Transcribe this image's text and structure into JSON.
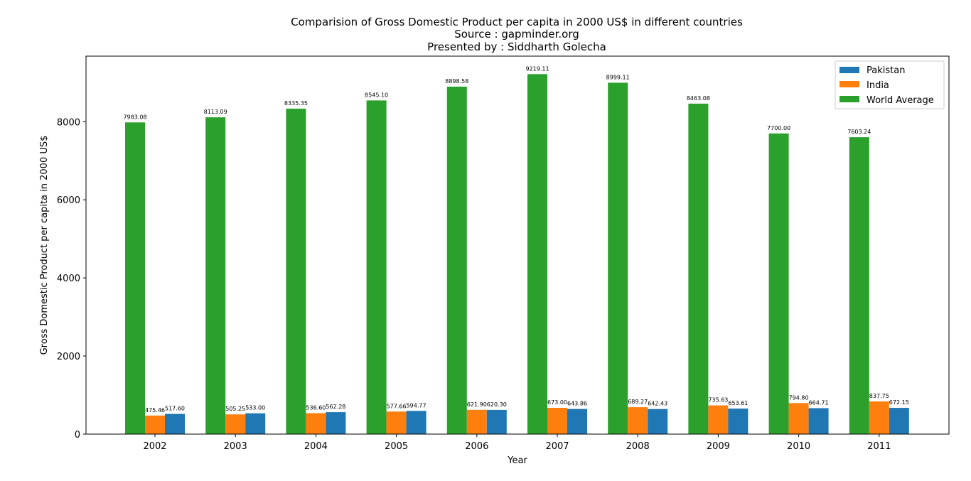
{
  "chart_data": {
    "type": "bar",
    "title_lines": [
      "Comparision of Gross Domestic Product per capita in 2000 US$ in different countries",
      "Source : gapminder.org",
      "Presented by : Siddharth Golecha"
    ],
    "xlabel": "Year",
    "ylabel": "Gross Domestic Product per capita in 2000 US$",
    "categories": [
      "2002",
      "2003",
      "2004",
      "2005",
      "2006",
      "2007",
      "2008",
      "2009",
      "2010",
      "2011"
    ],
    "ylim": [
      0,
      9680
    ],
    "yticks": [
      0,
      2000,
      4000,
      6000,
      8000
    ],
    "series": [
      {
        "name": "Pakistan",
        "color": "#1f77b4",
        "values": [
          517.6,
          533.0,
          562.28,
          594.77,
          620.3,
          643.86,
          642.43,
          653.61,
          664.71,
          672.15
        ],
        "labels": [
          "517.60",
          "533.00",
          "562.28",
          "594.77",
          "620.30",
          "643.86",
          "642.43",
          "653.61",
          "664.71",
          "672.15"
        ]
      },
      {
        "name": "India",
        "color": "#ff7f0e",
        "values": [
          475.46,
          505.25,
          536.6,
          577.66,
          621.9,
          673.0,
          689.27,
          735.63,
          794.8,
          837.75
        ],
        "labels": [
          "475.46",
          "505.25",
          "536.60",
          "577.66",
          "621.90",
          "673.00",
          "689.27",
          "735.63",
          "794.80",
          "837.75"
        ]
      },
      {
        "name": "World Average",
        "color": "#2ca02c",
        "values": [
          7983.08,
          8113.09,
          8335.35,
          8545.1,
          8898.58,
          9219.11,
          8999.11,
          8463.08,
          7700.0,
          7603.24
        ],
        "labels": [
          "7983.08",
          "8113.09",
          "8335.35",
          "8545.10",
          "8898.58",
          "9219.11",
          "8999.11",
          "8463.08",
          "7700.00",
          "7603.24"
        ]
      }
    ],
    "bar_order_left_to_right": [
      "World Average",
      "India",
      "Pakistan"
    ],
    "legend_position": "top-right",
    "grid": false
  }
}
